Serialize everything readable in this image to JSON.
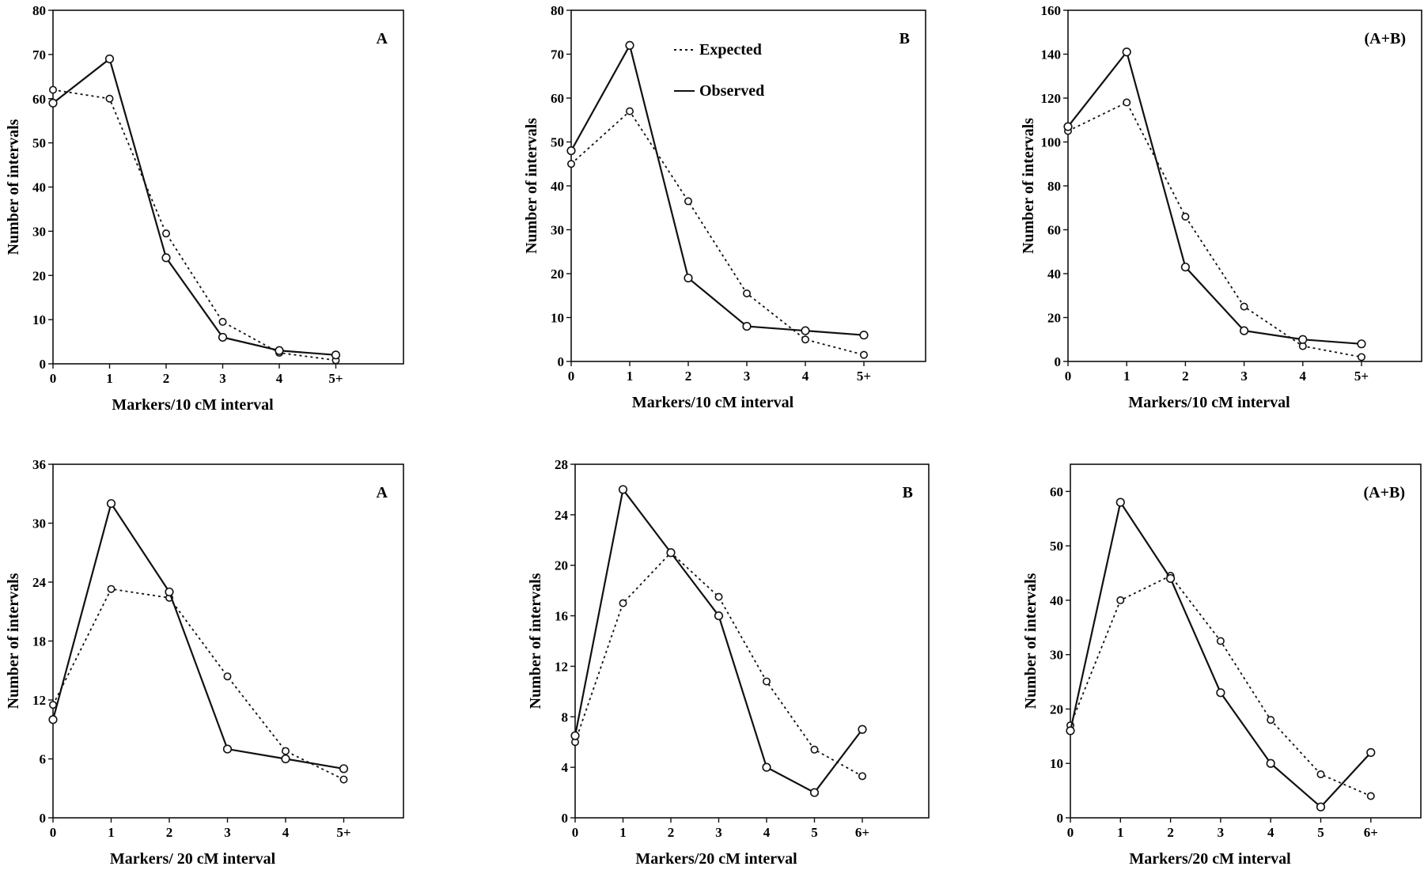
{
  "chart_data": [
    {
      "type": "line",
      "panel_label": "A",
      "xlabel": "Markers/10 cM interval",
      "ylabel": "Number of intervals",
      "categories": [
        "0",
        "1",
        "2",
        "3",
        "4",
        "5+"
      ],
      "ylim": [
        0,
        80
      ],
      "yticks": [
        0,
        10,
        20,
        30,
        40,
        50,
        60,
        70,
        80
      ],
      "grid": false,
      "series": [
        {
          "name": "Expected",
          "style": "dotted",
          "values": [
            62,
            60,
            29.5,
            9.5,
            2.5,
            0.8
          ]
        },
        {
          "name": "Observed",
          "style": "solid",
          "values": [
            59,
            69,
            24,
            6,
            3,
            2
          ]
        }
      ]
    },
    {
      "type": "line",
      "panel_label": "B",
      "xlabel": "Markers/10 cM interval",
      "ylabel": "Number of intervals",
      "categories": [
        "0",
        "1",
        "2",
        "3",
        "4",
        "5+"
      ],
      "ylim": [
        0,
        80
      ],
      "yticks": [
        0,
        10,
        20,
        30,
        40,
        50,
        60,
        70,
        80
      ],
      "grid": false,
      "legend": {
        "position": "top-right",
        "entries": [
          {
            "label": "Expected",
            "style": "dotted"
          },
          {
            "label": "Observed",
            "style": "solid"
          }
        ]
      },
      "series": [
        {
          "name": "Expected",
          "style": "dotted",
          "values": [
            45,
            57,
            36.5,
            15.5,
            5,
            1.5
          ]
        },
        {
          "name": "Observed",
          "style": "solid",
          "values": [
            48,
            72,
            19,
            8,
            7,
            6
          ]
        }
      ]
    },
    {
      "type": "line",
      "panel_label": "(A+B)",
      "xlabel": "Markers/10 cM interval",
      "ylabel": "Number of intervals",
      "categories": [
        "0",
        "1",
        "2",
        "3",
        "4",
        "5+"
      ],
      "ylim": [
        0,
        160
      ],
      "yticks": [
        0,
        20,
        40,
        60,
        80,
        100,
        120,
        140,
        160
      ],
      "grid": false,
      "series": [
        {
          "name": "Expected",
          "style": "dotted",
          "values": [
            105,
            118,
            66,
            25,
            7,
            2
          ]
        },
        {
          "name": "Observed",
          "style": "solid",
          "values": [
            107,
            141,
            43,
            14,
            10,
            8
          ]
        }
      ]
    },
    {
      "type": "line",
      "panel_label": "A",
      "xlabel": "Markers/ 20 cM interval",
      "ylabel": "Number of intervals",
      "categories": [
        "0",
        "1",
        "2",
        "3",
        "4",
        "5+"
      ],
      "ylim": [
        0,
        36
      ],
      "yticks": [
        0,
        6,
        12,
        18,
        24,
        30,
        36
      ],
      "grid": false,
      "series": [
        {
          "name": "Expected",
          "style": "dotted",
          "values": [
            11.5,
            23.3,
            22.4,
            14.4,
            6.8,
            3.9
          ]
        },
        {
          "name": "Observed",
          "style": "solid",
          "values": [
            10,
            32,
            23,
            7,
            6,
            5
          ]
        }
      ]
    },
    {
      "type": "line",
      "panel_label": "B",
      "xlabel": "Markers/20 cM interval",
      "ylabel": "Number of intervals",
      "categories": [
        "0",
        "1",
        "2",
        "3",
        "4",
        "5",
        "6+"
      ],
      "ylim": [
        0,
        28
      ],
      "yticks": [
        0,
        4,
        8,
        12,
        16,
        20,
        24,
        28
      ],
      "grid": false,
      "series": [
        {
          "name": "Expected",
          "style": "dotted",
          "values": [
            6,
            17,
            21,
            17.5,
            10.8,
            5.4,
            3.3
          ]
        },
        {
          "name": "Observed",
          "style": "solid",
          "values": [
            6.5,
            26,
            21,
            16,
            4,
            2,
            7
          ]
        }
      ]
    },
    {
      "type": "line",
      "panel_label": "(A+B)",
      "xlabel": "Markers/20 cM interval",
      "ylabel": "Number of intervals",
      "categories": [
        "0",
        "1",
        "2",
        "3",
        "4",
        "5",
        "6+"
      ],
      "ylim": [
        0,
        65
      ],
      "yticks": [
        0,
        10,
        20,
        30,
        40,
        50,
        60
      ],
      "grid": false,
      "series": [
        {
          "name": "Expected",
          "style": "dotted",
          "values": [
            17,
            40,
            44.5,
            32.5,
            18,
            8,
            4
          ]
        },
        {
          "name": "Observed",
          "style": "solid",
          "values": [
            16,
            58,
            44,
            23,
            10,
            2,
            12
          ]
        }
      ]
    }
  ]
}
